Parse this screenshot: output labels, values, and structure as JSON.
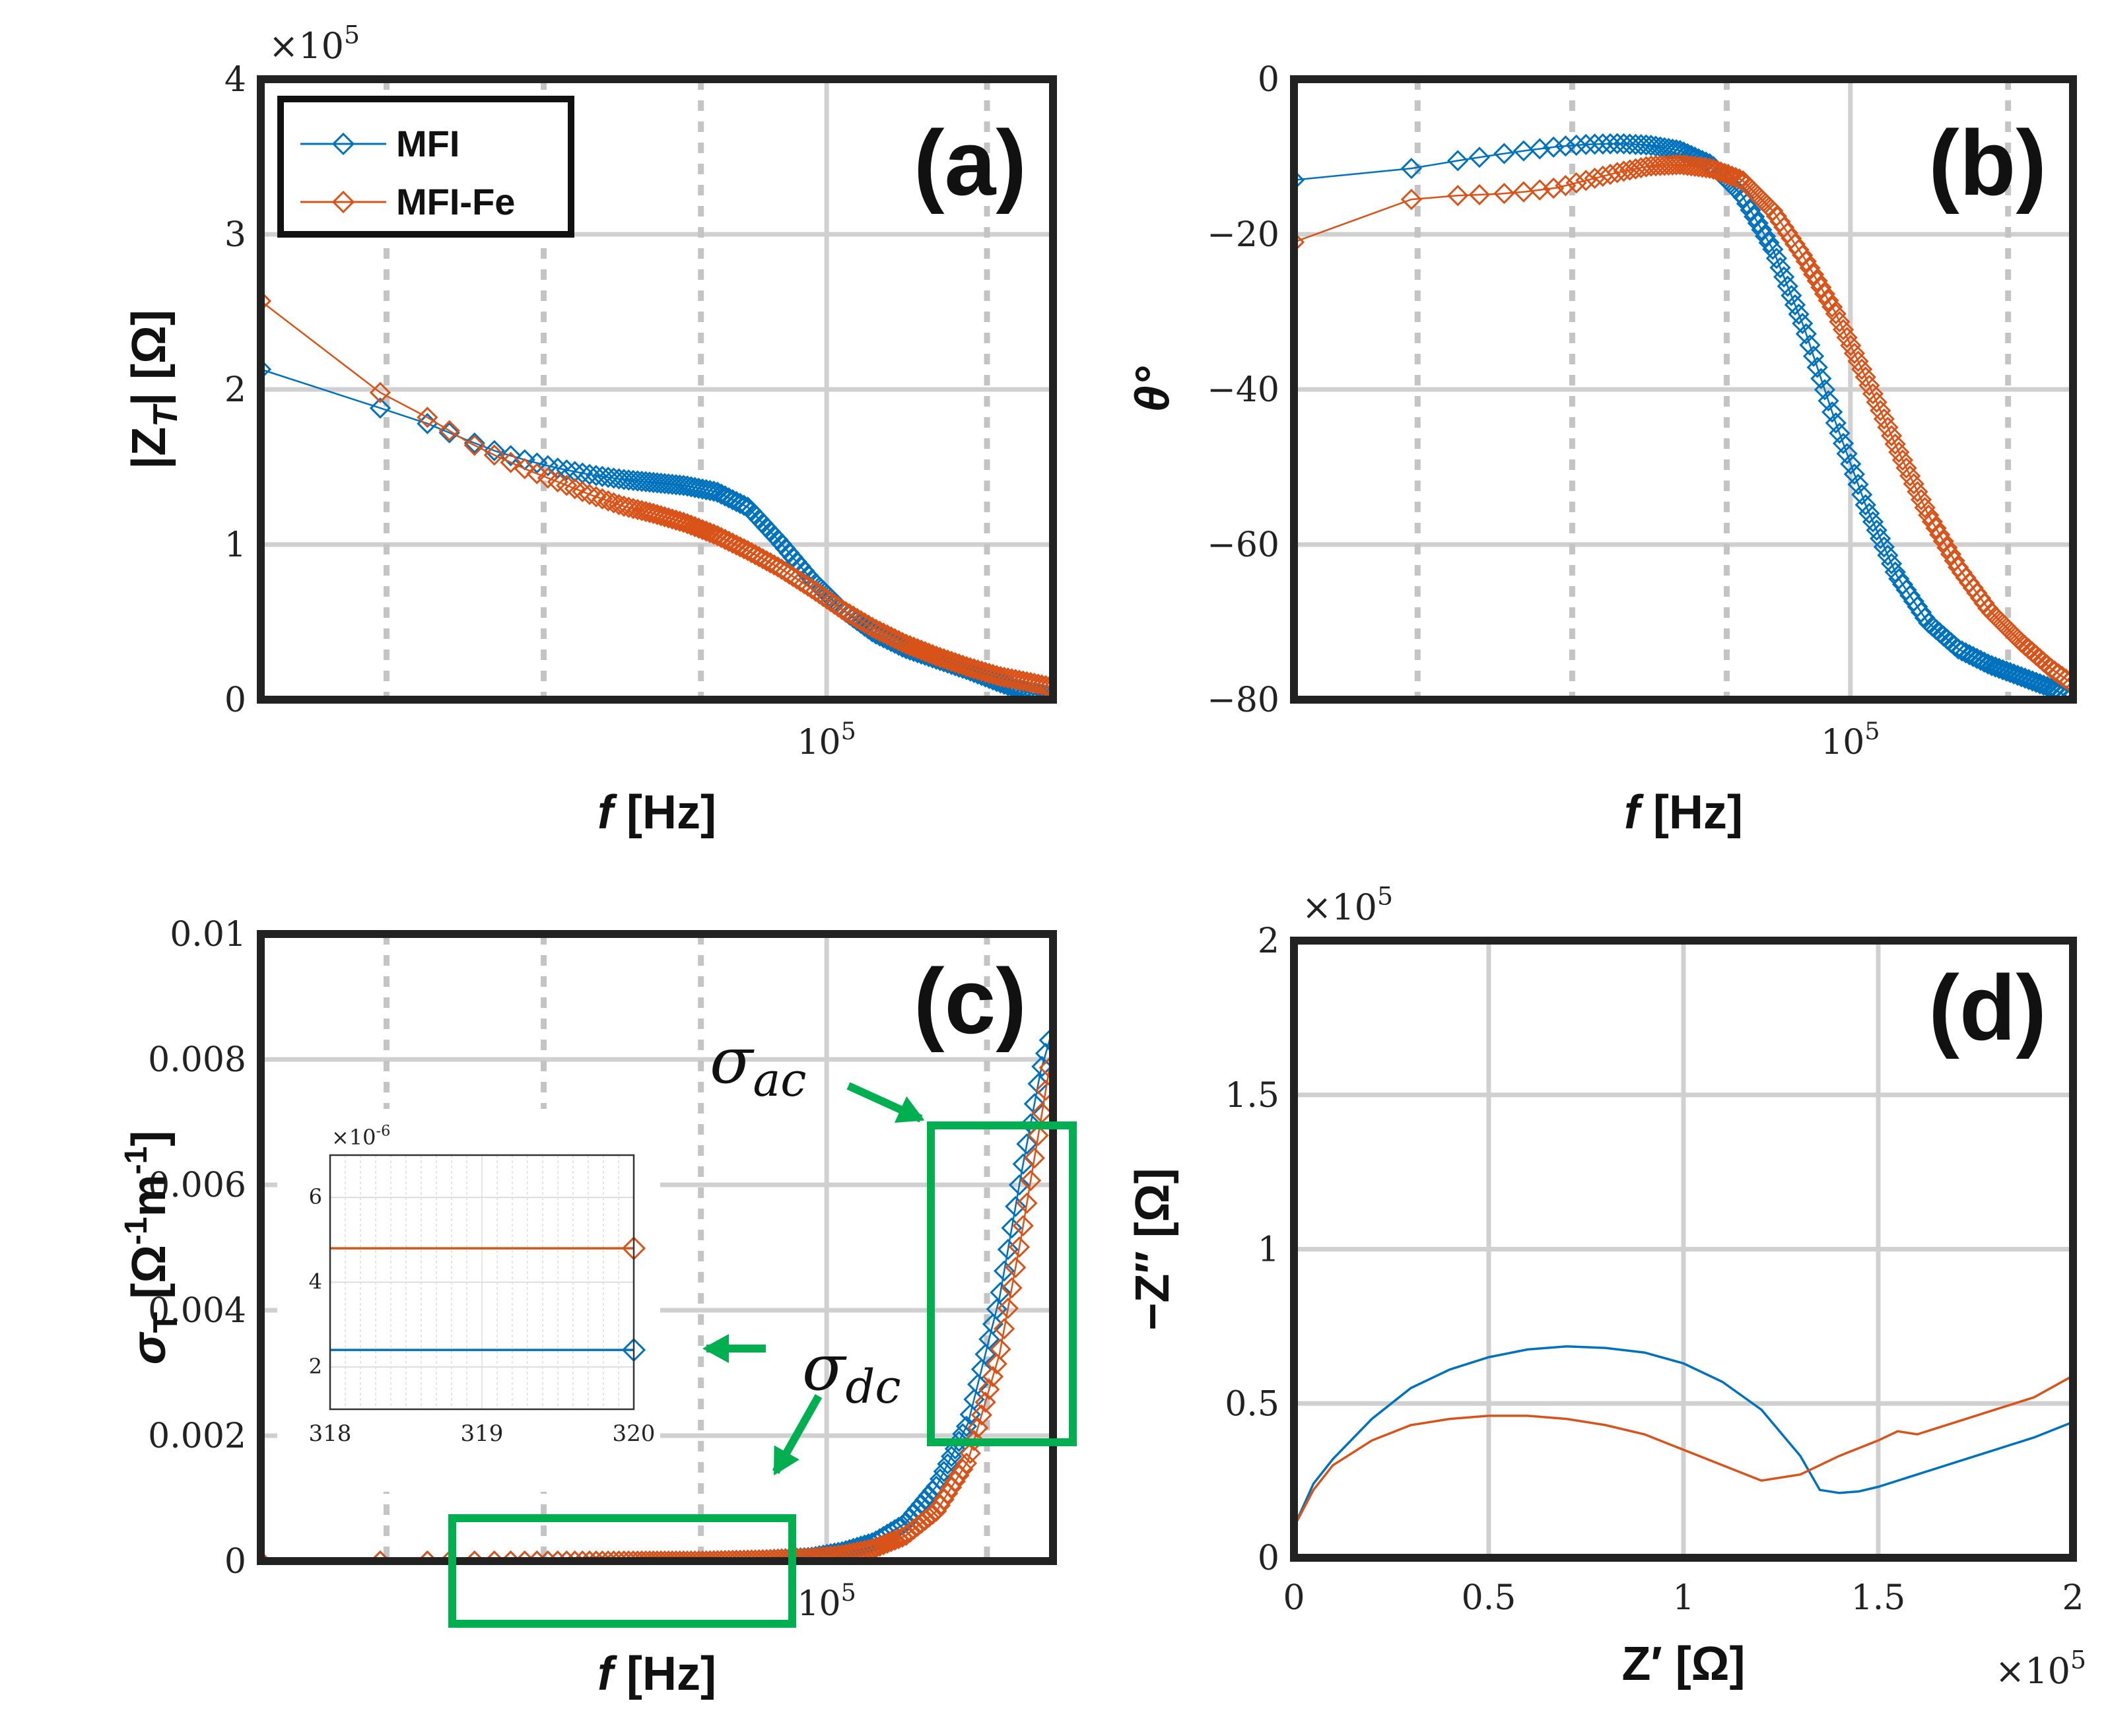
{
  "colors": {
    "mfi": "#0072BD",
    "mfi_fe": "#D95319",
    "box": "#00B050",
    "grid": "#d0d0d0",
    "axis": "#222222"
  },
  "legend": {
    "items": [
      "MFI",
      "MFI-Fe"
    ]
  },
  "chart_data": [
    {
      "id": "a",
      "type": "line",
      "panel_label": "(a)",
      "xlabel_italic": "f",
      "xlabel_unit": "[Hz]",
      "ylabel": "|Z_T| [Ω]",
      "ylim": [
        0,
        4
      ],
      "yticks": [
        "0",
        "1",
        "2",
        "3",
        "4"
      ],
      "yexponent": "×10^5",
      "xlim_log": [
        3.2,
        5.72
      ],
      "xticks": [
        {
          "value": 5,
          "label": "10^5"
        }
      ],
      "minor_xgrid_log": [
        3.6,
        4.1,
        4.6,
        5.51
      ],
      "series": [
        {
          "name": "MFI",
          "x_log": [
            3.2,
            3.58,
            3.73,
            3.86,
            3.95,
            4.05,
            4.15,
            4.25,
            4.35,
            4.45,
            4.55,
            4.65,
            4.75,
            4.85,
            4.95,
            5.05,
            5.15,
            5.25,
            5.35,
            5.45,
            5.55,
            5.65,
            5.72
          ],
          "values": [
            2.13,
            1.88,
            1.78,
            1.67,
            1.6,
            1.54,
            1.49,
            1.45,
            1.42,
            1.4,
            1.38,
            1.34,
            1.24,
            1.02,
            0.78,
            0.58,
            0.43,
            0.33,
            0.26,
            0.19,
            0.11,
            0.04,
            0.02
          ]
        },
        {
          "name": "MFI-Fe",
          "x_log": [
            3.2,
            3.58,
            3.73,
            3.86,
            3.95,
            4.05,
            4.15,
            4.25,
            4.35,
            4.45,
            4.55,
            4.65,
            4.75,
            4.85,
            4.95,
            5.05,
            5.15,
            5.25,
            5.35,
            5.45,
            5.55,
            5.65,
            5.72
          ],
          "values": [
            2.57,
            1.98,
            1.82,
            1.66,
            1.57,
            1.48,
            1.4,
            1.32,
            1.25,
            1.2,
            1.14,
            1.06,
            0.96,
            0.85,
            0.72,
            0.58,
            0.46,
            0.36,
            0.28,
            0.21,
            0.15,
            0.11,
            0.08
          ]
        }
      ]
    },
    {
      "id": "b",
      "type": "line",
      "panel_label": "(b)",
      "xlabel_italic": "f",
      "xlabel_unit": "[Hz]",
      "ylabel": "θ°",
      "ylim": [
        -80,
        0
      ],
      "yticks": [
        "0",
        "−20",
        "−40",
        "−60",
        "−80"
      ],
      "xlim_log": [
        3.2,
        5.72
      ],
      "xticks": [
        {
          "value": 5,
          "label": "10^5"
        }
      ],
      "minor_xgrid_log": [
        3.6,
        4.1,
        4.6,
        5.51
      ],
      "series": [
        {
          "name": "MFI",
          "x_log": [
            3.2,
            3.58,
            3.73,
            3.86,
            3.95,
            4.05,
            4.15,
            4.25,
            4.35,
            4.45,
            4.55,
            4.65,
            4.75,
            4.85,
            4.95,
            5.05,
            5.15,
            5.25,
            5.35,
            5.45,
            5.55,
            5.65,
            5.72
          ],
          "values": [
            -13,
            -11.5,
            -10.5,
            -9.7,
            -9.2,
            -8.7,
            -8.4,
            -8.3,
            -8.5,
            -9.2,
            -11,
            -15,
            -22,
            -32,
            -44,
            -55,
            -64,
            -70,
            -73.5,
            -75.5,
            -77,
            -78.5,
            -80
          ]
        },
        {
          "name": "MFI-Fe",
          "x_log": [
            3.2,
            3.58,
            3.73,
            3.86,
            3.95,
            4.05,
            4.15,
            4.25,
            4.35,
            4.45,
            4.55,
            4.65,
            4.75,
            4.85,
            4.95,
            5.05,
            5.15,
            5.25,
            5.35,
            5.45,
            5.55,
            5.65,
            5.72
          ],
          "values": [
            -21,
            -15.5,
            -15,
            -14.8,
            -14.5,
            -14,
            -13,
            -12,
            -11.2,
            -11,
            -11.5,
            -13,
            -17,
            -23,
            -30,
            -38.5,
            -47.5,
            -56,
            -63,
            -68.5,
            -72.5,
            -76,
            -78
          ]
        }
      ]
    },
    {
      "id": "c",
      "type": "line",
      "panel_label": "(c)",
      "xlabel_italic": "f",
      "xlabel_unit": "[Hz]",
      "ylabel": "σ_T [Ω^-1 m^-1]",
      "ylim": [
        0,
        0.01
      ],
      "yticks": [
        "0",
        "0.002",
        "0.004",
        "0.006",
        "0.008",
        "0.01"
      ],
      "xlim_log": [
        3.2,
        5.72
      ],
      "xticks": [
        {
          "value": 5,
          "label": "10^5"
        }
      ],
      "minor_xgrid_log": [
        3.6,
        4.1,
        4.6,
        5.51
      ],
      "annotations": [
        "σ_ac",
        "σ_dc"
      ],
      "series": [
        {
          "name": "MFI",
          "x_log": [
            3.2,
            3.6,
            3.8,
            4.0,
            4.2,
            4.4,
            4.6,
            4.8,
            4.95,
            5.05,
            5.15,
            5.25,
            5.35,
            5.45,
            5.55,
            5.62,
            5.68,
            5.72
          ],
          "values": [
            0,
            0,
            0,
            0,
            0,
            0,
            0,
            2e-05,
            6e-05,
            0.00015,
            0.0003,
            0.0006,
            0.0012,
            0.0022,
            0.0042,
            0.0062,
            0.0078,
            0.0085
          ]
        },
        {
          "name": "MFI-Fe",
          "x_log": [
            3.2,
            3.6,
            3.8,
            4.0,
            4.2,
            4.4,
            4.6,
            4.8,
            4.95,
            5.05,
            5.15,
            5.25,
            5.35,
            5.45,
            5.55,
            5.62,
            5.68,
            5.72
          ],
          "values": [
            0,
            0,
            0,
            0,
            0,
            0,
            0,
            2e-05,
            5e-05,
            0.0001,
            0.0002,
            0.0004,
            0.0008,
            0.0016,
            0.0033,
            0.0052,
            0.007,
            0.0082
          ]
        }
      ],
      "inset": {
        "xlim": [
          318,
          320
        ],
        "xticks": [
          "318",
          "319",
          "320"
        ],
        "ylim": [
          1,
          7
        ],
        "yticks": [
          "2",
          "4",
          "6"
        ],
        "yexponent": "×10^-6",
        "series": [
          {
            "name": "MFI",
            "x": [
              318,
              320
            ],
            "values": [
              2.4,
              2.4
            ]
          },
          {
            "name": "MFI-Fe",
            "x": [
              318,
              320
            ],
            "values": [
              4.8,
              4.8
            ]
          }
        ]
      }
    },
    {
      "id": "d",
      "type": "line",
      "panel_label": "(d)",
      "xlabel": "Z′ [Ω]",
      "ylabel": "−Z″ [Ω]",
      "xlim": [
        0,
        2
      ],
      "xticks": [
        "0",
        "0.5",
        "1",
        "1.5",
        "2"
      ],
      "xexponent": "×10^5",
      "ylim": [
        0,
        2
      ],
      "yticks": [
        "0",
        "0.5",
        "1",
        "1.5",
        "2"
      ],
      "yexponent": "×10^5",
      "series": [
        {
          "name": "MFI",
          "x": [
            0,
            0.05,
            0.1,
            0.2,
            0.3,
            0.4,
            0.5,
            0.6,
            0.7,
            0.8,
            0.9,
            1.0,
            1.1,
            1.2,
            1.3,
            1.35,
            1.4,
            1.45,
            1.5,
            1.6,
            1.7,
            1.8,
            1.9,
            2.0
          ],
          "values": [
            0.1,
            0.24,
            0.32,
            0.45,
            0.55,
            0.61,
            0.65,
            0.675,
            0.685,
            0.68,
            0.665,
            0.63,
            0.57,
            0.48,
            0.33,
            0.22,
            0.21,
            0.215,
            0.23,
            0.27,
            0.31,
            0.35,
            0.39,
            0.44
          ]
        },
        {
          "name": "MFI-Fe",
          "x": [
            0,
            0.05,
            0.1,
            0.2,
            0.3,
            0.4,
            0.5,
            0.6,
            0.7,
            0.8,
            0.9,
            1.0,
            1.1,
            1.2,
            1.3,
            1.4,
            1.5,
            1.55,
            1.6,
            1.7,
            1.8,
            1.9,
            2.0
          ],
          "values": [
            0.1,
            0.22,
            0.3,
            0.38,
            0.43,
            0.45,
            0.46,
            0.46,
            0.45,
            0.43,
            0.4,
            0.35,
            0.3,
            0.25,
            0.27,
            0.33,
            0.38,
            0.41,
            0.4,
            0.44,
            0.48,
            0.52,
            0.59
          ]
        }
      ]
    }
  ]
}
